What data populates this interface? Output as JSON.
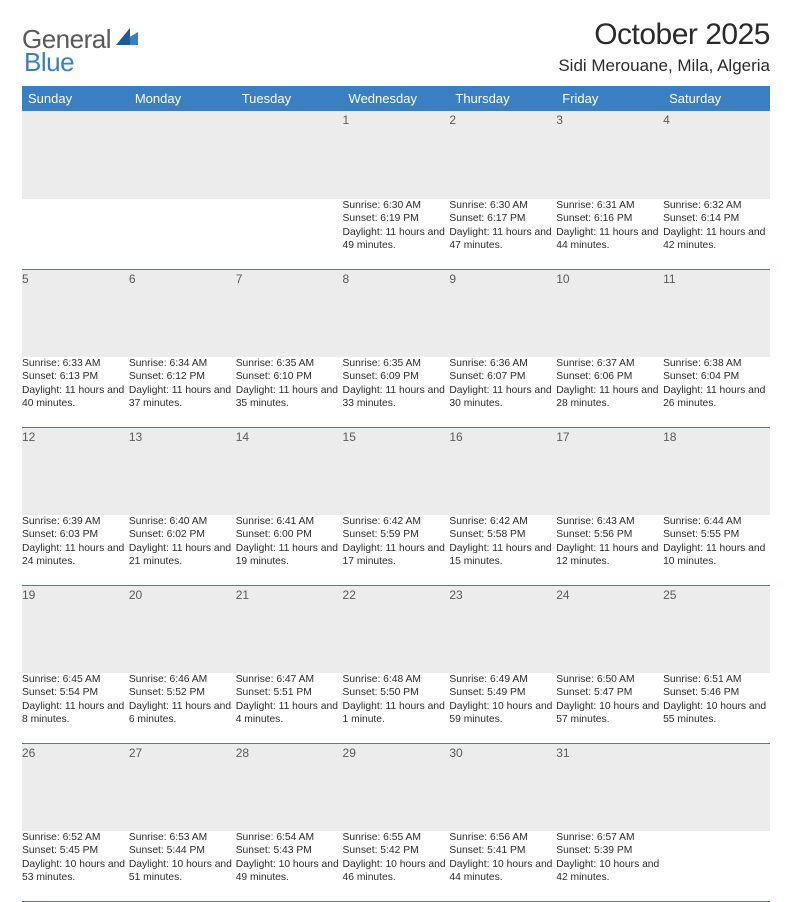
{
  "brand": {
    "part1": "General",
    "part2": "Blue"
  },
  "title": "October 2025",
  "location": "Sidi Merouane, Mila, Algeria",
  "colors": {
    "accent": "#3a7fc4",
    "header_bg": "#3a7fc4",
    "header_text": "#ffffff",
    "daynum_bg": "#ececec",
    "rule": "#3a7fc4",
    "body_text": "#2b2b2b",
    "logo_gray": "#5a5a5a"
  },
  "weekdays": [
    "Sunday",
    "Monday",
    "Tuesday",
    "Wednesday",
    "Thursday",
    "Friday",
    "Saturday"
  ],
  "weeks": [
    [
      null,
      null,
      null,
      {
        "n": "1",
        "sr": "6:30 AM",
        "ss": "6:19 PM",
        "dl": "11 hours and 49 minutes."
      },
      {
        "n": "2",
        "sr": "6:30 AM",
        "ss": "6:17 PM",
        "dl": "11 hours and 47 minutes."
      },
      {
        "n": "3",
        "sr": "6:31 AM",
        "ss": "6:16 PM",
        "dl": "11 hours and 44 minutes."
      },
      {
        "n": "4",
        "sr": "6:32 AM",
        "ss": "6:14 PM",
        "dl": "11 hours and 42 minutes."
      }
    ],
    [
      {
        "n": "5",
        "sr": "6:33 AM",
        "ss": "6:13 PM",
        "dl": "11 hours and 40 minutes."
      },
      {
        "n": "6",
        "sr": "6:34 AM",
        "ss": "6:12 PM",
        "dl": "11 hours and 37 minutes."
      },
      {
        "n": "7",
        "sr": "6:35 AM",
        "ss": "6:10 PM",
        "dl": "11 hours and 35 minutes."
      },
      {
        "n": "8",
        "sr": "6:35 AM",
        "ss": "6:09 PM",
        "dl": "11 hours and 33 minutes."
      },
      {
        "n": "9",
        "sr": "6:36 AM",
        "ss": "6:07 PM",
        "dl": "11 hours and 30 minutes."
      },
      {
        "n": "10",
        "sr": "6:37 AM",
        "ss": "6:06 PM",
        "dl": "11 hours and 28 minutes."
      },
      {
        "n": "11",
        "sr": "6:38 AM",
        "ss": "6:04 PM",
        "dl": "11 hours and 26 minutes."
      }
    ],
    [
      {
        "n": "12",
        "sr": "6:39 AM",
        "ss": "6:03 PM",
        "dl": "11 hours and 24 minutes."
      },
      {
        "n": "13",
        "sr": "6:40 AM",
        "ss": "6:02 PM",
        "dl": "11 hours and 21 minutes."
      },
      {
        "n": "14",
        "sr": "6:41 AM",
        "ss": "6:00 PM",
        "dl": "11 hours and 19 minutes."
      },
      {
        "n": "15",
        "sr": "6:42 AM",
        "ss": "5:59 PM",
        "dl": "11 hours and 17 minutes."
      },
      {
        "n": "16",
        "sr": "6:42 AM",
        "ss": "5:58 PM",
        "dl": "11 hours and 15 minutes."
      },
      {
        "n": "17",
        "sr": "6:43 AM",
        "ss": "5:56 PM",
        "dl": "11 hours and 12 minutes."
      },
      {
        "n": "18",
        "sr": "6:44 AM",
        "ss": "5:55 PM",
        "dl": "11 hours and 10 minutes."
      }
    ],
    [
      {
        "n": "19",
        "sr": "6:45 AM",
        "ss": "5:54 PM",
        "dl": "11 hours and 8 minutes."
      },
      {
        "n": "20",
        "sr": "6:46 AM",
        "ss": "5:52 PM",
        "dl": "11 hours and 6 minutes."
      },
      {
        "n": "21",
        "sr": "6:47 AM",
        "ss": "5:51 PM",
        "dl": "11 hours and 4 minutes."
      },
      {
        "n": "22",
        "sr": "6:48 AM",
        "ss": "5:50 PM",
        "dl": "11 hours and 1 minute."
      },
      {
        "n": "23",
        "sr": "6:49 AM",
        "ss": "5:49 PM",
        "dl": "10 hours and 59 minutes."
      },
      {
        "n": "24",
        "sr": "6:50 AM",
        "ss": "5:47 PM",
        "dl": "10 hours and 57 minutes."
      },
      {
        "n": "25",
        "sr": "6:51 AM",
        "ss": "5:46 PM",
        "dl": "10 hours and 55 minutes."
      }
    ],
    [
      {
        "n": "26",
        "sr": "6:52 AM",
        "ss": "5:45 PM",
        "dl": "10 hours and 53 minutes."
      },
      {
        "n": "27",
        "sr": "6:53 AM",
        "ss": "5:44 PM",
        "dl": "10 hours and 51 minutes."
      },
      {
        "n": "28",
        "sr": "6:54 AM",
        "ss": "5:43 PM",
        "dl": "10 hours and 49 minutes."
      },
      {
        "n": "29",
        "sr": "6:55 AM",
        "ss": "5:42 PM",
        "dl": "10 hours and 46 minutes."
      },
      {
        "n": "30",
        "sr": "6:56 AM",
        "ss": "5:41 PM",
        "dl": "10 hours and 44 minutes."
      },
      {
        "n": "31",
        "sr": "6:57 AM",
        "ss": "5:39 PM",
        "dl": "10 hours and 42 minutes."
      },
      null
    ]
  ],
  "labels": {
    "sunrise": "Sunrise:",
    "sunset": "Sunset:",
    "daylight": "Daylight:"
  }
}
